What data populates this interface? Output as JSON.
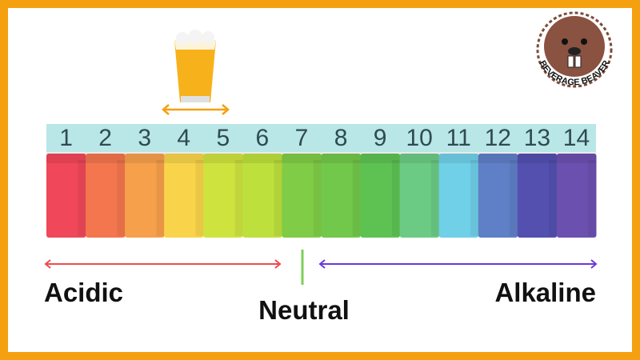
{
  "scale": {
    "levels": [
      1,
      2,
      3,
      4,
      5,
      6,
      7,
      8,
      9,
      10,
      11,
      12,
      13,
      14
    ],
    "colors": [
      "#f0475a",
      "#f3764e",
      "#f7a04b",
      "#f9d44a",
      "#cfe33e",
      "#bde03d",
      "#80cc46",
      "#72c84a",
      "#5ec253",
      "#6bcb84",
      "#6fd0e8",
      "#5f7fc6",
      "#5350b0",
      "#6c50b0"
    ]
  },
  "labels": {
    "acidic": "Acidic",
    "neutral": "Neutral",
    "alkaline": "Alkaline"
  },
  "logo": {
    "text": "BEVERAGE BEAVER"
  }
}
